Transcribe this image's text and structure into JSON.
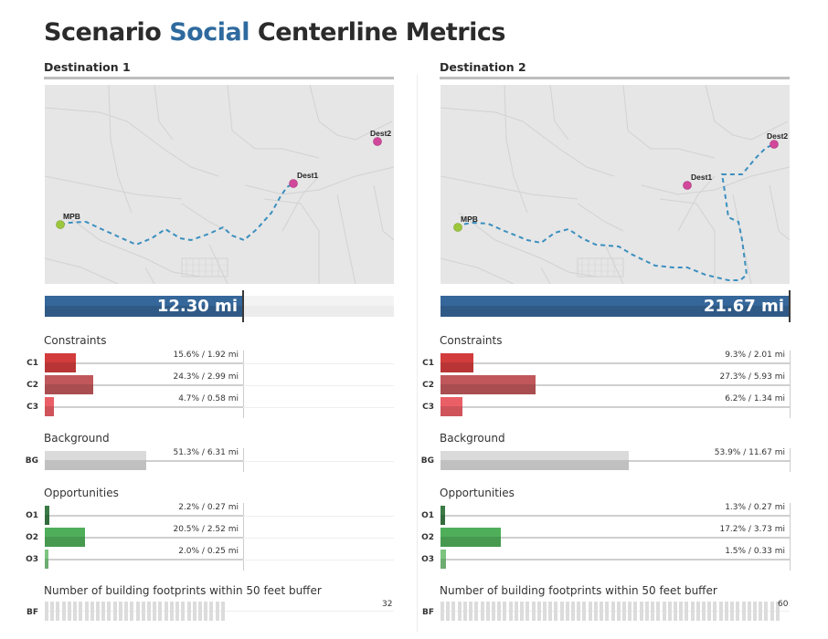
{
  "page_title": {
    "prefix": "Scenario",
    "accent": "Social",
    "suffix": "Centerline Metrics"
  },
  "colors": {
    "accent": "#2e6a9e",
    "distance_bar": "#2f5a86",
    "constraint_c1": "#d23c3c",
    "constraint_c2": "#c0575b",
    "constraint_c3": "#ea5f66",
    "background": "#cfcfcf",
    "opportunity_o1": "#3a7a45",
    "opportunity_o2": "#4fae5a",
    "opportunity_o3": "#7cc47f",
    "route": "#3b8fbf",
    "origin_point": "#9cc63b",
    "destination_point": "#d1479a"
  },
  "sections": {
    "constraints": "Constraints",
    "background": "Background",
    "opportunities": "Opportunities",
    "buildings": "Number of building footprints within 50 feet buffer"
  },
  "chart_data": [
    {
      "type": "bar",
      "title": "Destination 1",
      "map_labels": [
        "MPB",
        "Dest1",
        "Dest2"
      ],
      "total_distance": {
        "value": 12.3,
        "unit": "mi",
        "label": "12.30 mi",
        "scale_max": 21.67
      },
      "constraints": [
        {
          "code": "C1",
          "percent": 15.6,
          "miles": 1.92,
          "label": "15.6% / 1.92 mi"
        },
        {
          "code": "C2",
          "percent": 24.3,
          "miles": 2.99,
          "label": "24.3% / 2.99 mi"
        },
        {
          "code": "C3",
          "percent": 4.7,
          "miles": 0.58,
          "label": "4.7% / 0.58 mi"
        }
      ],
      "background": [
        {
          "code": "BG",
          "percent": 51.3,
          "miles": 6.31,
          "label": "51.3% / 6.31 mi"
        }
      ],
      "opportunities": [
        {
          "code": "O1",
          "percent": 2.2,
          "miles": 0.27,
          "label": "2.2% / 0.27 mi"
        },
        {
          "code": "O2",
          "percent": 20.5,
          "miles": 2.52,
          "label": "20.5%  / 2.52 mi"
        },
        {
          "code": "O3",
          "percent": 2.0,
          "miles": 0.25,
          "label": "2.0%  / 0.25 mi"
        }
      ],
      "building_footprints": {
        "code": "BF",
        "count": 32,
        "scale_max": 60,
        "label": "32"
      }
    },
    {
      "type": "bar",
      "title": "Destination 2",
      "map_labels": [
        "MPB",
        "Dest1",
        "Dest2"
      ],
      "total_distance": {
        "value": 21.67,
        "unit": "mi",
        "label": "21.67 mi",
        "scale_max": 21.67
      },
      "constraints": [
        {
          "code": "C1",
          "percent": 9.3,
          "miles": 2.01,
          "label": "9.3% / 2.01 mi"
        },
        {
          "code": "C2",
          "percent": 27.3,
          "miles": 5.93,
          "label": "27.3% / 5.93 mi"
        },
        {
          "code": "C3",
          "percent": 6.2,
          "miles": 1.34,
          "label": "6.2% / 1.34 mi"
        }
      ],
      "background": [
        {
          "code": "BG",
          "percent": 53.9,
          "miles": 11.67,
          "label": "53.9% / 11.67 mi"
        }
      ],
      "opportunities": [
        {
          "code": "O1",
          "percent": 1.3,
          "miles": 0.27,
          "label": "1.3% / 0.27 mi"
        },
        {
          "code": "O2",
          "percent": 17.2,
          "miles": 3.73,
          "label": "17.2%  / 3.73 mi"
        },
        {
          "code": "O3",
          "percent": 1.5,
          "miles": 0.33,
          "label": "1.5%  / 0.33 mi"
        }
      ],
      "building_footprints": {
        "code": "BF",
        "count": 60,
        "scale_max": 60,
        "label": "60"
      }
    }
  ]
}
